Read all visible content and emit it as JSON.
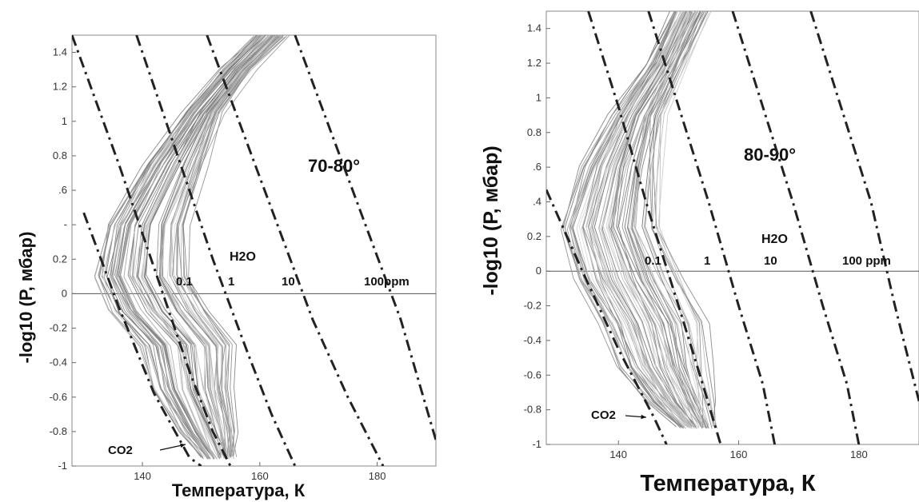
{
  "chart_data": [
    {
      "type": "line",
      "title": "",
      "xlabel": "Температура, К",
      "ylabel": "-log10 (P, мбар)",
      "xlim": [
        128,
        190
      ],
      "ylim": [
        -1.0,
        1.5
      ],
      "x_ticks": [
        140,
        160,
        180
      ],
      "y_ticks": [
        -1,
        -0.8,
        -0.6,
        -0.4,
        -0.2,
        0,
        0.2,
        0.4,
        0.6,
        0.8,
        1,
        1.2,
        1.4
      ],
      "y_tick_labels": [
        "-1",
        "-0.8",
        "-0.6",
        "-0.4",
        "-0.2",
        "0",
        "0.2",
        "-",
        ".6",
        "0.8",
        "1",
        "1.2",
        "1.4"
      ],
      "grid": false,
      "annotations": {
        "latitude": "70-80°",
        "species": "H2O",
        "co2": "CO2"
      },
      "saturation_curves": [
        {
          "label": "0.1",
          "style": "dash-dot",
          "points": [
            [
              130,
              0.47
            ],
            [
              136,
              -0.08
            ],
            [
              142,
              -0.58
            ],
            [
              148,
              -0.95
            ],
            [
              150,
              -1.0
            ]
          ]
        },
        {
          "label": "1",
          "style": "dash-dot",
          "points": [
            [
              128,
              1.5
            ],
            [
              136,
              0.75
            ],
            [
              142,
              0.15
            ],
            [
              148,
              -0.45
            ],
            [
              152,
              -0.8
            ],
            [
              155,
              -1.0
            ]
          ]
        },
        {
          "label": "10",
          "style": "dash-dot",
          "points": [
            [
              139,
              1.5
            ],
            [
              146,
              0.8
            ],
            [
              152,
              0.2
            ],
            [
              158,
              -0.35
            ],
            [
              162,
              -0.7
            ],
            [
              166,
              -1.0
            ]
          ]
        },
        {
          "label": "100ppm",
          "style": "dash-dot",
          "points": [
            [
              151,
              1.5
            ],
            [
              157,
              0.95
            ],
            [
              163,
              0.4
            ],
            [
              169,
              -0.15
            ],
            [
              175,
              -0.6
            ],
            [
              181,
              -1.0
            ]
          ]
        },
        {
          "label": "",
          "style": "dash-dot",
          "points": [
            [
              166,
              1.5
            ],
            [
              172,
              0.95
            ],
            [
              178,
              0.4
            ],
            [
              184,
              -0.15
            ],
            [
              190,
              -0.85
            ]
          ]
        }
      ],
      "profile_envelope": {
        "description": "family of ~80 gray temperature profiles",
        "center": [
          [
            153,
            -0.95
          ],
          [
            151,
            -0.8
          ],
          [
            148,
            -0.55
          ],
          [
            147,
            -0.3
          ],
          [
            142,
            -0.1
          ],
          [
            139,
            0.1
          ],
          [
            140,
            0.4
          ],
          [
            145,
            0.75
          ],
          [
            150,
            1.05
          ],
          [
            156,
            1.3
          ],
          [
            162,
            1.5
          ]
        ],
        "spread_low": -6,
        "spread_high": 7
      }
    },
    {
      "type": "line",
      "title": "",
      "xlabel": "Температура, К",
      "ylabel": "-log10 (P, мбар)",
      "xlim": [
        128,
        190
      ],
      "ylim": [
        -1.0,
        1.5
      ],
      "x_ticks": [
        140,
        160,
        180
      ],
      "y_ticks": [
        -1,
        -0.8,
        -0.6,
        -0.4,
        -0.2,
        0,
        0.2,
        0.4,
        0.6,
        0.8,
        1,
        1.2,
        1.4
      ],
      "y_tick_labels": [
        "-1",
        "-0.8",
        "-0.6",
        "-0.4",
        "-0.2",
        "0",
        "0.2",
        ".4",
        ".6",
        "0.8",
        "1",
        "1.2",
        "1.4"
      ],
      "grid": false,
      "annotations": {
        "latitude": "80-90°",
        "species": "H2O",
        "co2": "CO2"
      },
      "saturation_curves": [
        {
          "label": "0.1",
          "style": "dash-dot",
          "points": [
            [
              128,
              0.47
            ],
            [
              134,
              0.0
            ],
            [
              140,
              -0.45
            ],
            [
              146,
              -0.85
            ],
            [
              148,
              -1.0
            ]
          ]
        },
        {
          "label": "1",
          "style": "dash-dot",
          "points": [
            [
              135,
              1.5
            ],
            [
              140,
              0.95
            ],
            [
              145,
              0.35
            ],
            [
              150,
              -0.2
            ],
            [
              154,
              -0.65
            ],
            [
              157,
              -1.0
            ]
          ]
        },
        {
          "label": "10",
          "style": "dash-dot",
          "points": [
            [
              145,
              1.5
            ],
            [
              150,
              0.95
            ],
            [
              155,
              0.4
            ],
            [
              160,
              -0.2
            ],
            [
              164,
              -0.65
            ],
            [
              166,
              -1.0
            ]
          ]
        },
        {
          "label": "100 ppm",
          "style": "dash-dot",
          "points": [
            [
              159,
              1.5
            ],
            [
              164,
              0.95
            ],
            [
              169,
              0.4
            ],
            [
              174,
              -0.2
            ],
            [
              178,
              -0.65
            ],
            [
              180,
              -1.0
            ]
          ]
        },
        {
          "label": "",
          "style": "dash-dot",
          "points": [
            [
              172,
              1.5
            ],
            [
              177,
              0.95
            ],
            [
              182,
              0.4
            ],
            [
              186,
              -0.2
            ],
            [
              190,
              -0.75
            ]
          ]
        }
      ],
      "profile_envelope": {
        "description": "family of ~80 gray temperature profiles",
        "center": [
          [
            153,
            -0.9
          ],
          [
            150,
            -0.75
          ],
          [
            147,
            -0.55
          ],
          [
            145,
            -0.3
          ],
          [
            141,
            -0.05
          ],
          [
            138,
            0.25
          ],
          [
            140,
            0.6
          ],
          [
            143,
            0.9
          ],
          [
            148,
            1.2
          ],
          [
            152,
            1.5
          ]
        ],
        "spread_low": -7,
        "spread_high": 7
      }
    }
  ]
}
